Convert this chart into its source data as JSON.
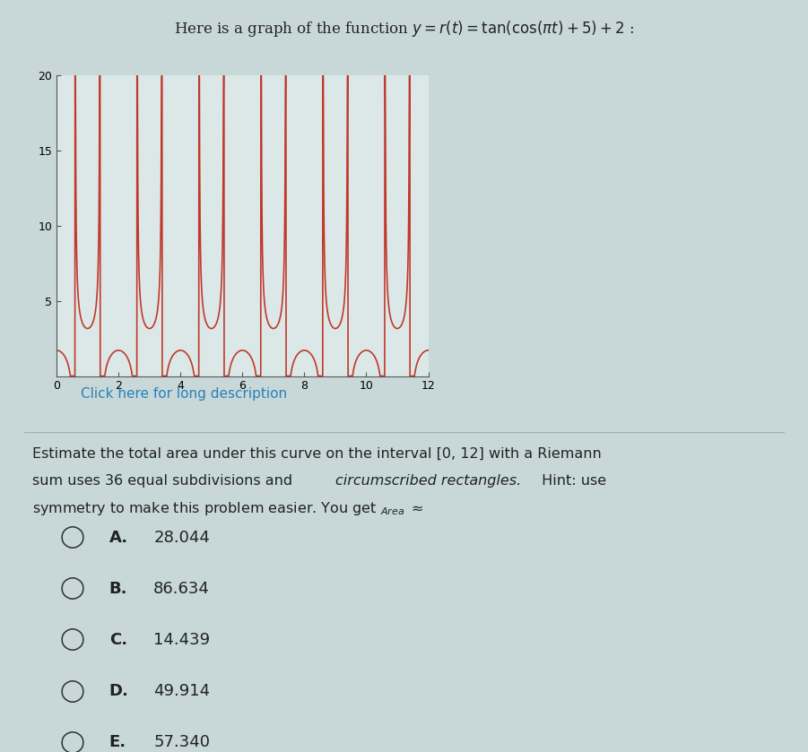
{
  "func_xlim": [
    0,
    12
  ],
  "func_ylim": [
    0,
    20
  ],
  "func_xticks": [
    0,
    2,
    4,
    6,
    8,
    10,
    12
  ],
  "func_yticks": [
    5,
    10,
    15,
    20
  ],
  "curve_color": "#c0392b",
  "link_text": "Click here for long description",
  "link_color": "#2980b9",
  "choices": [
    {
      "label": "A.",
      "value": "28.044"
    },
    {
      "label": "B.",
      "value": "86.634"
    },
    {
      "label": "C.",
      "value": "14.439"
    },
    {
      "label": "D.",
      "value": "49.914"
    },
    {
      "label": "E.",
      "value": "57.340"
    }
  ],
  "separator_color": "#aaaaaa",
  "text_color": "#222222",
  "figure_bg": "#c8d8d8",
  "plot_bg": "#dce8e8"
}
